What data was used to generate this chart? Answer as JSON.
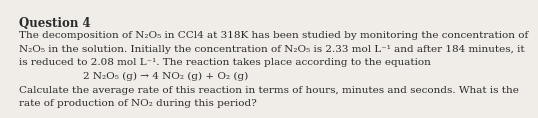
{
  "title": "Question 4",
  "lines": [
    "The decomposition of N₂O₅ in CCl4 at 318K has been studied by monitoring the concentration of",
    "N₂O₅ in the solution. Initially the concentration of N₂O₅ is 2.33 mol L⁻¹ and after 184 minutes, it",
    "is reduced to 2.08 mol L⁻¹. The reaction takes place according to the equation",
    "2 N₂O₅ (g) → 4 NO₂ (g) + O₂ (g)",
    "Calculate the average rate of this reaction in terms of hours, minutes and seconds. What is the",
    "rate of production of NO₂ during this period?"
  ],
  "centered_line_index": 3,
  "title_fontsize": 8.5,
  "body_fontsize": 7.5,
  "bg_color": "#f0ede8",
  "text_color": "#2b2b2b",
  "title_bold": true
}
